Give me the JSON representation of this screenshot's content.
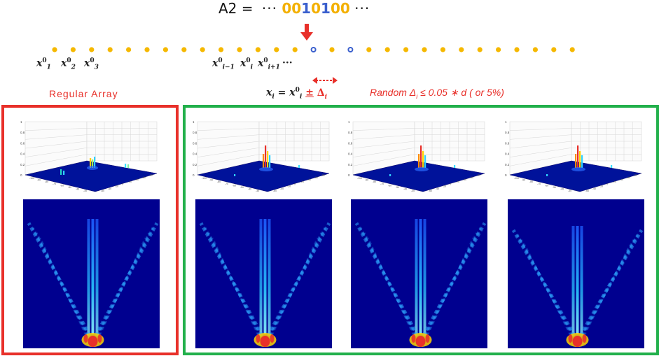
{
  "equation_top": {
    "label": "A2 =",
    "ellipsis": "···",
    "bits": [
      "0",
      "0",
      "1",
      "0",
      "1",
      "0",
      "0"
    ],
    "bit_colors": [
      "orange",
      "orange",
      "blue",
      "orange",
      "blue",
      "orange",
      "orange"
    ]
  },
  "array_labels": {
    "x1": {
      "base": "x",
      "sub": "1",
      "sup": "0"
    },
    "x2": {
      "base": "x",
      "sub": "2",
      "sup": "0"
    },
    "x3": {
      "base": "x",
      "sub": "3",
      "sup": "0"
    },
    "xim1": {
      "base": "x",
      "sub": "i−1",
      "sup": "0"
    },
    "xi": {
      "base": "x",
      "sub": "i",
      "sup": "0"
    },
    "xip1": {
      "base": "x",
      "sub": "i+1",
      "sup": "0"
    },
    "trail": "···"
  },
  "regular_label": "Regular Array",
  "eq_mid": {
    "lhs": "x",
    "lhs_sub": "i",
    "eq": "=",
    "rhs": "x",
    "rhs_sub": "i",
    "rhs_sup": "0",
    "pm": "±",
    "delta": "Δ",
    "delta_sub": "i"
  },
  "random_label": "Random Δ",
  "random_label_rest": "≤ 0.05 ∗ d ( or 5%)",
  "random_sub": "i",
  "colors": {
    "red": "#e8302a",
    "green": "#22b04b",
    "dot_orange": "#f5b800",
    "dot_blue": "#3a5fcd",
    "heat_bg": "#00008f"
  },
  "zaxis_ticks": [
    "1",
    "0.8",
    "0.6",
    "0.4",
    "0.2",
    "0"
  ]
}
